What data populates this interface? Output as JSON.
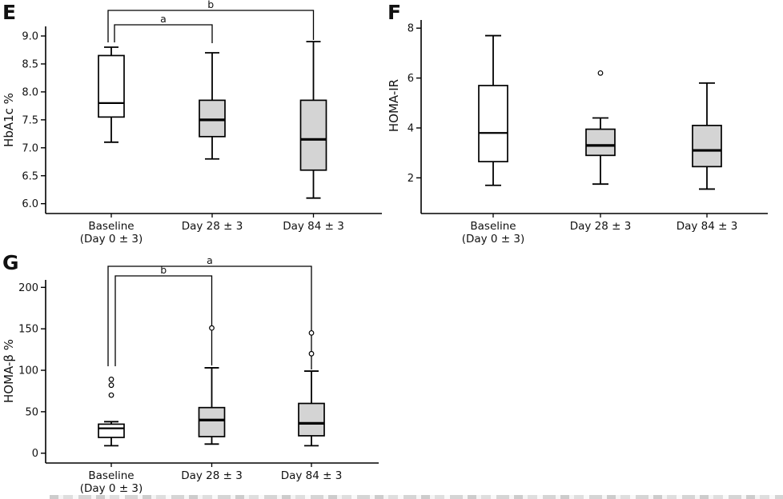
{
  "figure": {
    "panel_labels": [
      "E",
      "F",
      "G"
    ],
    "colors": {
      "box_fill_baseline": "#ffffff",
      "box_fill_followup": "#d4d4d4",
      "line": "#000000"
    }
  },
  "chart_data": [
    {
      "type": "box",
      "panel_label": "E",
      "ylabel": "HbA1c %",
      "xlabel": "",
      "categories": [
        [
          "Baseline",
          "(Day 0 ± 3)"
        ],
        [
          "Day 28 ± 3"
        ],
        [
          "Day 84 ± 3"
        ]
      ],
      "yticks": [
        6.0,
        6.5,
        7.0,
        7.5,
        8.0,
        8.5,
        9.0
      ],
      "ytick_labels": [
        "6.0",
        "6.5",
        "7.0",
        "7.5",
        "8.0",
        "8.5",
        "9.0"
      ],
      "ylim": [
        5.83,
        9.17
      ],
      "grid": false,
      "boxes": [
        {
          "whisker_low": 7.1,
          "q1": 7.55,
          "median": 7.8,
          "q3": 8.65,
          "whisker_high": 8.8,
          "outliers": [],
          "fill": "#ffffff"
        },
        {
          "whisker_low": 6.8,
          "q1": 7.2,
          "median": 7.5,
          "q3": 7.85,
          "whisker_high": 8.7,
          "outliers": [],
          "fill": "#d4d4d4"
        },
        {
          "whisker_low": 6.1,
          "q1": 6.6,
          "median": 7.15,
          "q3": 7.85,
          "whisker_high": 8.9,
          "outliers": [],
          "fill": "#d4d4d4"
        }
      ],
      "significance_brackets": [
        {
          "label": "a",
          "from": 0,
          "to": 1
        },
        {
          "label": "b",
          "from": 0,
          "to": 2
        }
      ]
    },
    {
      "type": "box",
      "panel_label": "F",
      "ylabel": "HOMA-IR",
      "xlabel": "",
      "categories": [
        [
          "Baseline",
          "(Day 0 ± 3)"
        ],
        [
          "Day 28 ± 3"
        ],
        [
          "Day 84 ± 3"
        ]
      ],
      "yticks": [
        2,
        4,
        6,
        8
      ],
      "ytick_labels": [
        "2",
        "4",
        "6",
        "8"
      ],
      "ylim": [
        0.57,
        8.33
      ],
      "grid": false,
      "boxes": [
        {
          "whisker_low": 1.7,
          "q1": 2.65,
          "median": 3.8,
          "q3": 5.7,
          "whisker_high": 7.7,
          "outliers": [],
          "fill": "#ffffff"
        },
        {
          "whisker_low": 1.75,
          "q1": 2.9,
          "median": 3.3,
          "q3": 3.95,
          "whisker_high": 4.4,
          "outliers": [
            6.2
          ],
          "fill": "#d4d4d4"
        },
        {
          "whisker_low": 1.55,
          "q1": 2.45,
          "median": 3.1,
          "q3": 4.1,
          "whisker_high": 5.8,
          "outliers": [],
          "fill": "#d4d4d4"
        }
      ],
      "significance_brackets": []
    },
    {
      "type": "box",
      "panel_label": "G",
      "ylabel": "HOMA-β %",
      "xlabel": "",
      "categories": [
        [
          "Baseline",
          "(Day 0 ± 3)"
        ],
        [
          "Day 28 ± 3"
        ],
        [
          "Day 84 ± 3"
        ]
      ],
      "yticks": [
        0,
        50,
        100,
        150,
        200
      ],
      "ytick_labels": [
        "0",
        "50",
        "100",
        "150",
        "200"
      ],
      "ylim": [
        -12,
        209
      ],
      "grid": false,
      "boxes": [
        {
          "whisker_low": 9,
          "q1": 19,
          "median": 30,
          "q3": 35,
          "whisker_high": 38,
          "outliers": [
            70,
            82,
            89
          ],
          "fill": "#ffffff"
        },
        {
          "whisker_low": 11,
          "q1": 20,
          "median": 40,
          "q3": 55,
          "whisker_high": 103,
          "outliers": [
            151
          ],
          "fill": "#d4d4d4"
        },
        {
          "whisker_low": 9,
          "q1": 21,
          "median": 36,
          "q3": 60,
          "whisker_high": 99,
          "outliers": [
            120,
            145
          ],
          "fill": "#d4d4d4"
        }
      ],
      "significance_brackets": [
        {
          "label": "b",
          "from": 0,
          "to": 1
        },
        {
          "label": "a",
          "from": 0,
          "to": 2
        }
      ]
    }
  ]
}
